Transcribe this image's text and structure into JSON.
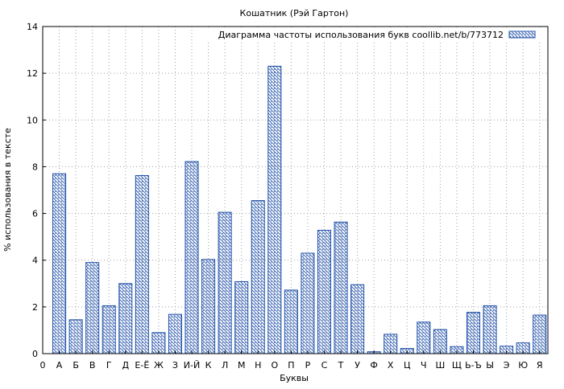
{
  "chart_data": {
    "type": "bar",
    "title": "Кошатник (Рэй Гартон)",
    "xlabel": "Буквы",
    "ylabel": "% использования в тексте",
    "legend": {
      "label": "Диаграмма частоты использования букв coollib.net/b/773712",
      "placement": "top-right"
    },
    "ylim": [
      0,
      14
    ],
    "yticks": [
      0,
      2,
      4,
      6,
      8,
      10,
      12,
      14
    ],
    "grid": true,
    "origin_tick_label": "0",
    "categories": [
      "А",
      "Б",
      "В",
      "Г",
      "Д",
      "Е-Ё",
      "Ж",
      "З",
      "И-Й",
      "К",
      "Л",
      "М",
      "Н",
      "О",
      "П",
      "Р",
      "С",
      "Т",
      "У",
      "Ф",
      "Х",
      "Ц",
      "Ч",
      "Ш",
      "Щ",
      "Ь-Ъ",
      "Ы",
      "Э",
      "Ю",
      "Я"
    ],
    "values": [
      7.7,
      1.45,
      3.9,
      2.05,
      3.0,
      7.62,
      0.9,
      1.68,
      8.22,
      4.03,
      6.05,
      3.08,
      6.55,
      12.3,
      2.72,
      4.3,
      5.28,
      5.63,
      2.95,
      0.08,
      0.83,
      0.22,
      1.35,
      1.03,
      0.3,
      1.77,
      2.05,
      0.32,
      0.46,
      1.65
    ],
    "colors": {
      "bar_stroke": "#1f4fa8",
      "hatch": "#1f4fa8",
      "grid": "#a0a0a0"
    }
  }
}
